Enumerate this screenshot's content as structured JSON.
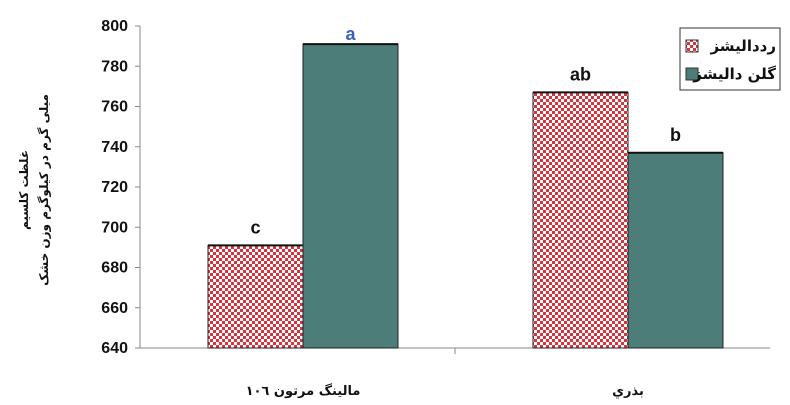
{
  "chart_data": {
    "type": "bar",
    "categories": [
      "مالينگ مرتون ١٠٦",
      "بذري"
    ],
    "series": [
      {
        "name": "ردداليشز",
        "values": [
          691,
          767
        ],
        "color": "#d8323c",
        "pattern": "checker"
      },
      {
        "name": "گلن داليشز",
        "values": [
          791,
          737
        ],
        "color": "#4d7d78",
        "pattern": "solid"
      }
    ],
    "significance_labels": [
      {
        "category": 0,
        "series": 0,
        "text": "c",
        "color": "#111111"
      },
      {
        "category": 0,
        "series": 1,
        "text": "a",
        "color": "#3a5fbf"
      },
      {
        "category": 1,
        "series": 0,
        "text": "ab",
        "color": "#111111"
      },
      {
        "category": 1,
        "series": 1,
        "text": "b",
        "color": "#111111"
      }
    ],
    "ylabel_lines": [
      "غلظت کلسیم",
      "میلی گرم در کیلوگرم وزن خشک"
    ],
    "xlabel": "",
    "ylim": [
      640,
      800
    ],
    "yticks": [
      640,
      660,
      680,
      700,
      720,
      740,
      760,
      780,
      800
    ],
    "grid": false,
    "legend_position": "top-right"
  }
}
